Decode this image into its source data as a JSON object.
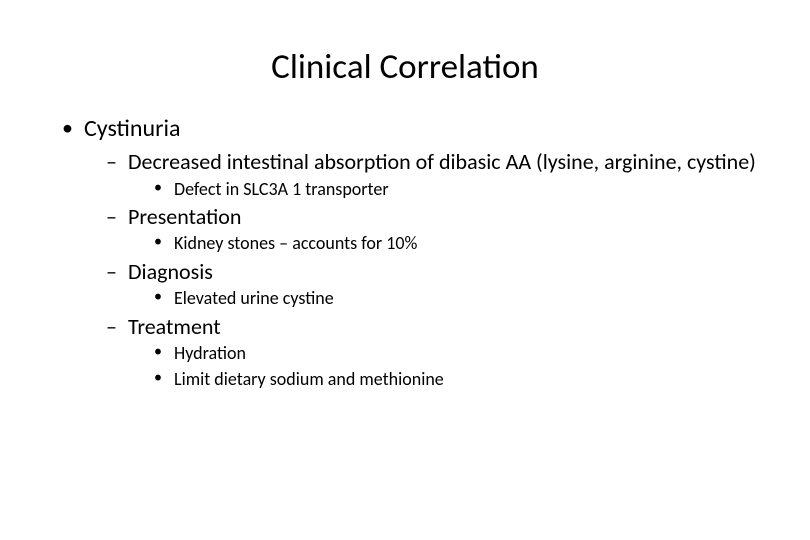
{
  "slide": {
    "title": "Clinical Correlation",
    "background_color": "#ffffff",
    "text_color": "#000000",
    "font_family": "Calibri",
    "title_fontsize": 35,
    "lvl1_fontsize": 24,
    "lvl2_fontsize": 22,
    "lvl3_fontsize": 18,
    "bullets": {
      "lvl1_marker": "•",
      "lvl2_marker": "–",
      "lvl3_marker": "•"
    },
    "content": {
      "lvl1_0": "Cystinuria",
      "lvl2_0": "Decreased intestinal absorption of dibasic AA (lysine, arginine, cystine)",
      "lvl3_0": "Defect in SLC3A 1 transporter",
      "lvl2_1": "Presentation",
      "lvl3_1": "Kidney stones – accounts for 10%",
      "lvl2_2": "Diagnosis",
      "lvl3_2": "Elevated urine cystine",
      "lvl2_3": "Treatment",
      "lvl3_3": "Hydration",
      "lvl3_4": "Limit dietary sodium and methionine"
    }
  }
}
